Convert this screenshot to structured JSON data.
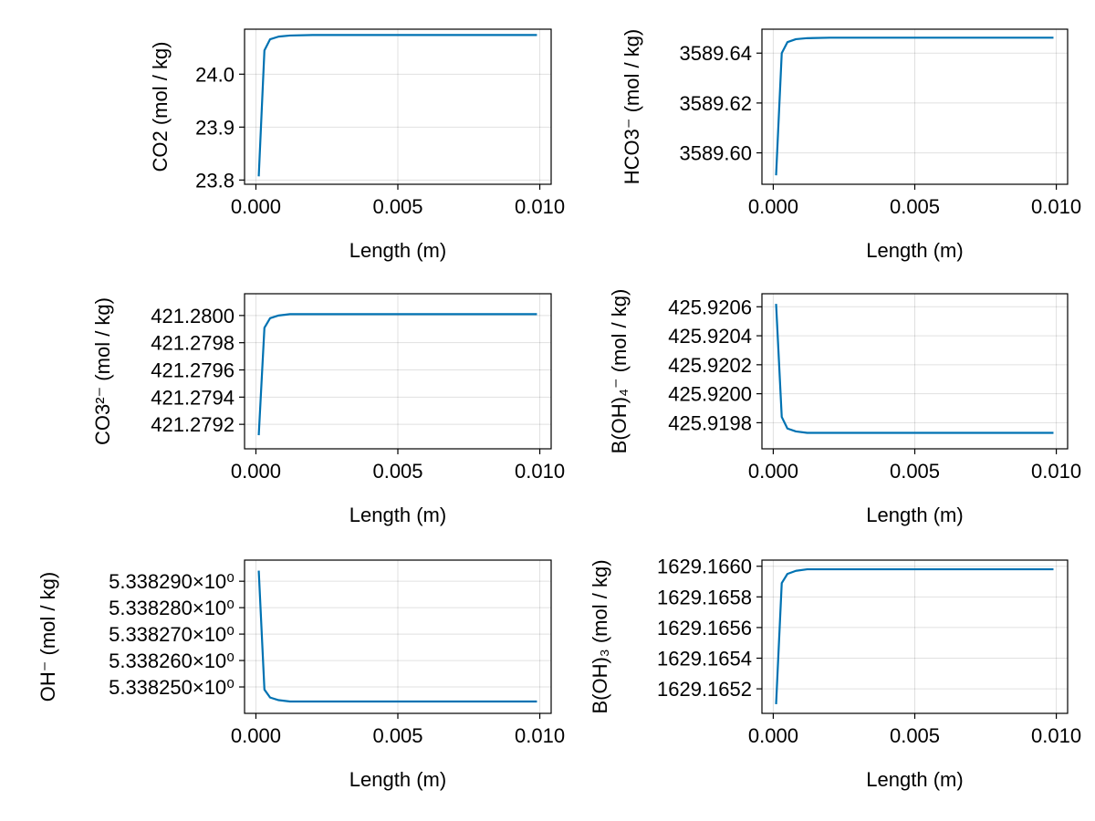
{
  "chart_data": [
    {
      "type": "line",
      "xlabel": "Length (m)",
      "ylabel": "CO2 (mol / kg)",
      "xlim": [
        -0.0004,
        0.0104
      ],
      "ylim": [
        23.792,
        24.085
      ],
      "xticks": [
        0.0,
        0.005,
        0.01
      ],
      "xtick_labels": [
        "0.000",
        "0.005",
        "0.010"
      ],
      "yticks": [
        23.8,
        23.9,
        24.0
      ],
      "ytick_labels": [
        "23.8",
        "23.9",
        "24.0"
      ],
      "grid": true,
      "series": [
        {
          "color": "#0072b2",
          "x": [
            0.0001,
            0.0003,
            0.0005,
            0.0008,
            0.0012,
            0.002,
            0.004,
            0.0099
          ],
          "y": [
            23.807,
            24.045,
            24.066,
            24.071,
            24.073,
            24.074,
            24.074,
            24.074
          ]
        }
      ]
    },
    {
      "type": "line",
      "xlabel": "Length (m)",
      "ylabel": "HCO3⁻ (mol / kg)",
      "xlim": [
        -0.0004,
        0.0104
      ],
      "ylim": [
        3589.5874,
        3589.6496
      ],
      "xticks": [
        0.0,
        0.005,
        0.01
      ],
      "xtick_labels": [
        "0.000",
        "0.005",
        "0.010"
      ],
      "yticks": [
        3589.6,
        3589.62,
        3589.64
      ],
      "ytick_labels": [
        "3589.60",
        "3589.62",
        "3589.64"
      ],
      "grid": true,
      "series": [
        {
          "color": "#0072b2",
          "x": [
            0.0001,
            0.0003,
            0.0005,
            0.0008,
            0.0012,
            0.002,
            0.004,
            0.0099
          ],
          "y": [
            3589.591,
            3589.64,
            3589.6444,
            3589.6456,
            3589.646,
            3589.6462,
            3589.6462,
            3589.6462
          ]
        }
      ]
    },
    {
      "type": "line",
      "xlabel": "Length (m)",
      "ylabel": "CO3²⁻ (mol / kg)",
      "xlim": [
        -0.0004,
        0.0104
      ],
      "ylim": [
        421.27902,
        421.28016
      ],
      "xticks": [
        0.0,
        0.005,
        0.01
      ],
      "xtick_labels": [
        "0.000",
        "0.005",
        "0.010"
      ],
      "yticks": [
        421.2792,
        421.2794,
        421.2796,
        421.2798,
        421.28
      ],
      "ytick_labels": [
        "421.2792",
        "421.2794",
        "421.2796",
        "421.2798",
        "421.2800"
      ],
      "grid": true,
      "series": [
        {
          "color": "#0072b2",
          "x": [
            0.0001,
            0.0003,
            0.0005,
            0.0008,
            0.0012,
            0.002,
            0.004,
            0.0099
          ],
          "y": [
            421.27912,
            421.27991,
            421.27998,
            421.28,
            421.28001,
            421.28001,
            421.28001,
            421.28001
          ]
        }
      ]
    },
    {
      "type": "line",
      "xlabel": "Length (m)",
      "ylabel": "B(OH)₄⁻ (mol / kg)",
      "xlim": [
        -0.0004,
        0.0104
      ],
      "ylim": [
        425.91962,
        425.92069
      ],
      "xticks": [
        0.0,
        0.005,
        0.01
      ],
      "xtick_labels": [
        "0.000",
        "0.005",
        "0.010"
      ],
      "yticks": [
        425.9198,
        425.92,
        425.9202,
        425.9204,
        425.9206
      ],
      "ytick_labels": [
        "425.9198",
        "425.9200",
        "425.9202",
        "425.9204",
        "425.9206"
      ],
      "grid": true,
      "series": [
        {
          "color": "#0072b2",
          "x": [
            0.0001,
            0.0003,
            0.0005,
            0.0008,
            0.0012,
            0.002,
            0.004,
            0.0099
          ],
          "y": [
            425.92062,
            425.91984,
            425.91976,
            425.91974,
            425.91973,
            425.91973,
            425.91973,
            425.91973
          ]
        }
      ]
    },
    {
      "type": "line",
      "xlabel": "Length (m)",
      "ylabel": "OH⁻ (mol / kg)",
      "xlim": [
        -0.0004,
        0.0104
      ],
      "ylim": [
        5.33824,
        5.338298
      ],
      "xticks": [
        0.0,
        0.005,
        0.01
      ],
      "xtick_labels": [
        "0.000",
        "0.005",
        "0.010"
      ],
      "yticks": [
        5.33825,
        5.33826,
        5.33827,
        5.33828,
        5.33829
      ],
      "ytick_labels": [
        "5.338250×10⁰",
        "5.338260×10⁰",
        "5.338270×10⁰",
        "5.338280×10⁰",
        "5.338290×10⁰"
      ],
      "grid": true,
      "series": [
        {
          "color": "#0072b2",
          "x": [
            0.0001,
            0.0003,
            0.0005,
            0.0008,
            0.0012,
            0.002,
            0.004,
            0.0099
          ],
          "y": [
            5.338294,
            5.338249,
            5.338246,
            5.338245,
            5.3382445,
            5.3382445,
            5.3382445,
            5.3382445
          ]
        }
      ]
    },
    {
      "type": "line",
      "xlabel": "Length (m)",
      "ylabel": "B(OH)₃ (mol / kg)",
      "xlim": [
        -0.0004,
        0.0104
      ],
      "ylim": [
        1629.16504,
        1629.16604
      ],
      "xticks": [
        0.0,
        0.005,
        0.01
      ],
      "xtick_labels": [
        "0.000",
        "0.005",
        "0.010"
      ],
      "yticks": [
        1629.1652,
        1629.1654,
        1629.1656,
        1629.1658,
        1629.166
      ],
      "ytick_labels": [
        "1629.1652",
        "1629.1654",
        "1629.1656",
        "1629.1658",
        "1629.1660"
      ],
      "grid": true,
      "series": [
        {
          "color": "#0072b2",
          "x": [
            0.0001,
            0.0003,
            0.0005,
            0.0008,
            0.0012,
            0.002,
            0.004,
            0.0099
          ],
          "y": [
            1629.1651,
            1629.16589,
            1629.16595,
            1629.16597,
            1629.16598,
            1629.16598,
            1629.16598,
            1629.16598
          ]
        }
      ]
    }
  ]
}
